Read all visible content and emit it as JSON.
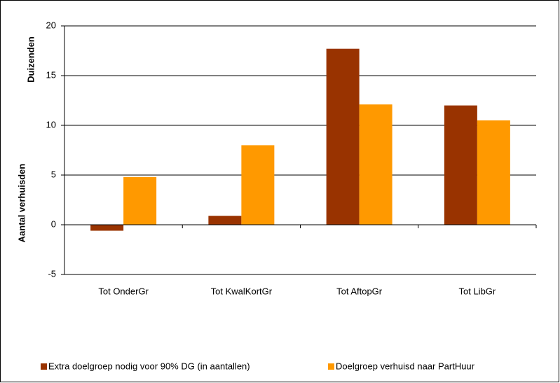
{
  "chart_data": {
    "type": "bar",
    "ylabel": "Aantal verhuisden",
    "yunits": "Duizenden",
    "categories": [
      "Tot OnderGr",
      "Tot KwalKortGr",
      "Tot AftopGr",
      "Tot LibGr"
    ],
    "series": [
      {
        "name": "Extra doelgroep nodig voor 90% DG (in aantallen)",
        "color": "#993300",
        "values": [
          -0.6,
          0.9,
          17.7,
          12.0
        ]
      },
      {
        "name": "Doelgroep verhuisd naar PartHuur",
        "color": "#FF9900",
        "values": [
          4.8,
          8.0,
          12.1,
          10.5
        ]
      }
    ],
    "ylim": [
      -5,
      20
    ],
    "yticks": [
      -5,
      0,
      5,
      10,
      15,
      20
    ],
    "grid": true
  }
}
